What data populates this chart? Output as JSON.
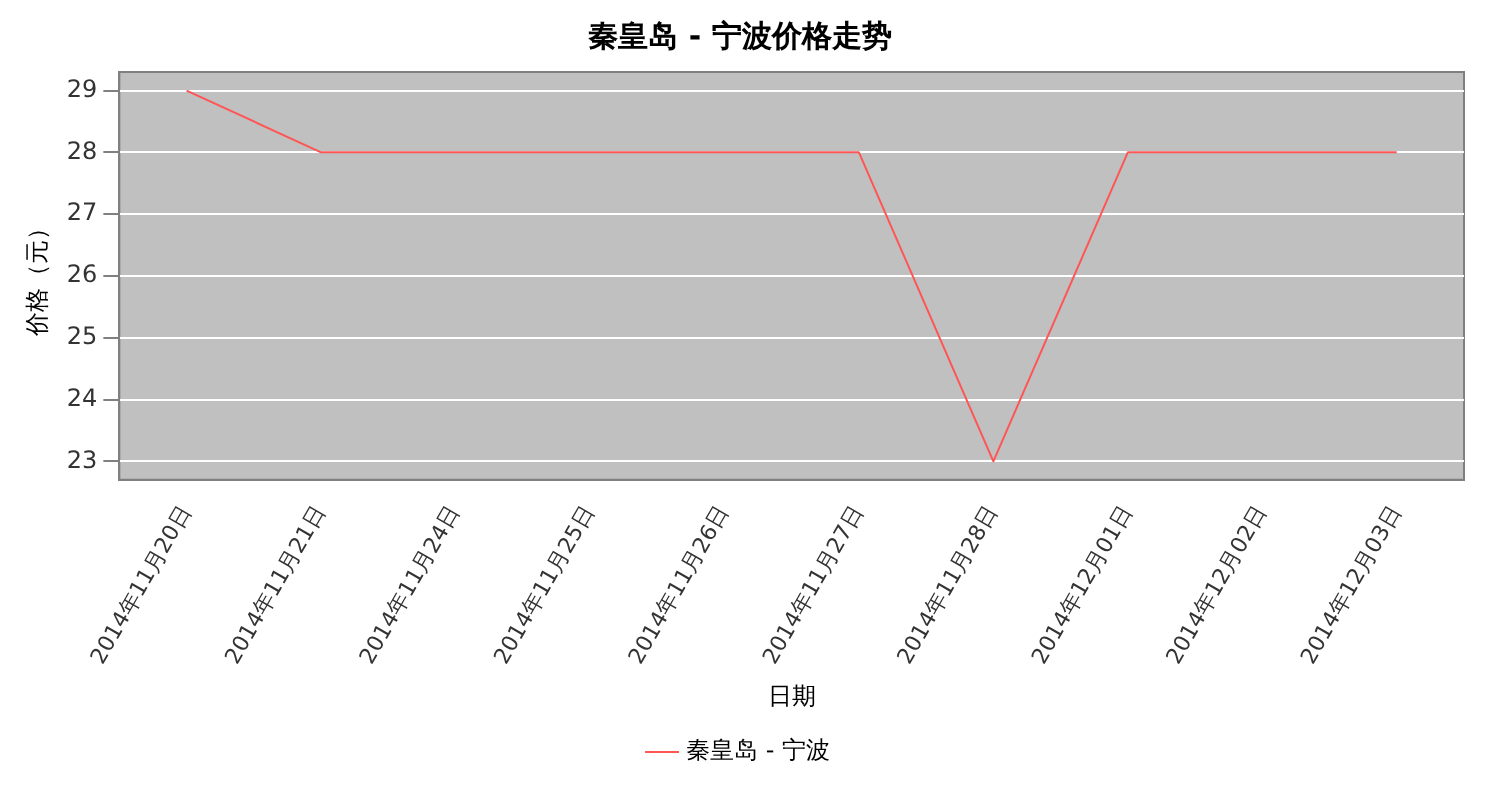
{
  "chart_data": {
    "type": "line",
    "title": "秦皇岛 - 宁波价格走势",
    "xlabel": "日期",
    "ylabel": "价格（元）",
    "categories": [
      "2014年11月20日",
      "2014年11月21日",
      "2014年11月24日",
      "2014年11月25日",
      "2014年11月26日",
      "2014年11月27日",
      "2014年11月28日",
      "2014年12月01日",
      "2014年12月02日",
      "2014年12月03日"
    ],
    "series": [
      {
        "name": "秦皇岛 - 宁波",
        "color": "#ff5555",
        "values": [
          29,
          28,
          28,
          28,
          28,
          28,
          23,
          28,
          28,
          28
        ]
      }
    ],
    "ylim": [
      22.7,
      29.3
    ],
    "yticks": [
      23,
      24,
      25,
      26,
      27,
      28,
      29
    ],
    "grid": "y",
    "legend": "bottom",
    "marker": "none",
    "line_style": "solid"
  }
}
